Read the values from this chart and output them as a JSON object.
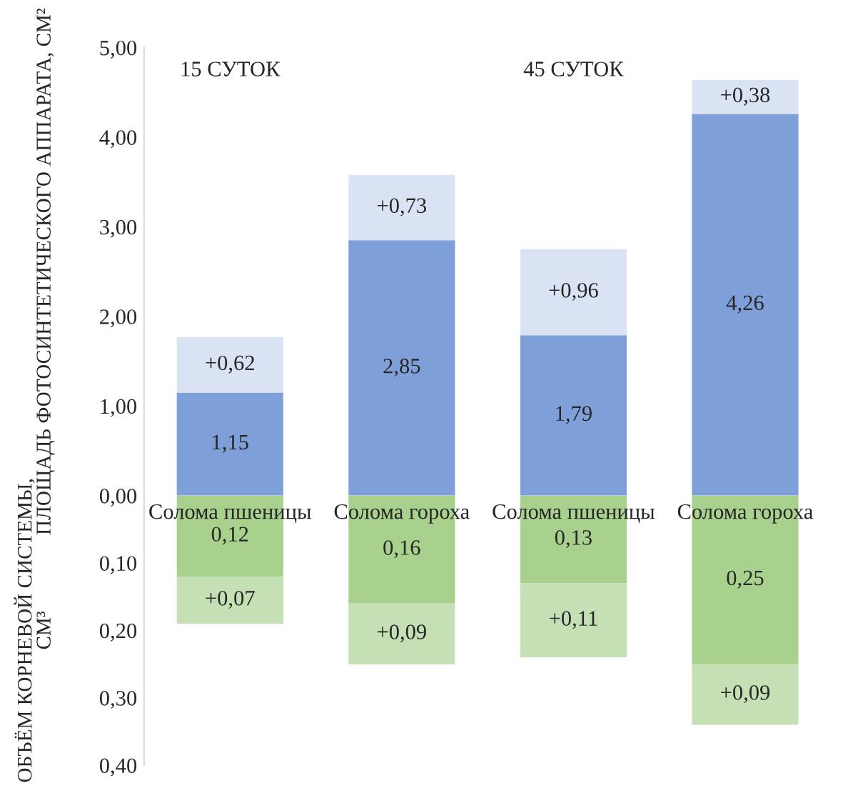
{
  "chart_data": [
    {
      "type": "bar",
      "stacked": true,
      "ylabel": "ПЛОЩАДЬ ФОТОСИНТЕТИЧЕСКОГО АППАРАТА, СМ²",
      "annotations": [
        "15 СУТОК",
        "45 СУТОК"
      ],
      "categories": [
        null,
        null,
        null,
        null
      ],
      "tick_labels": "y",
      "series": [
        {
          "color": "#7f9fd8",
          "values": [
            1.15,
            2.85,
            1.79,
            4.26
          ],
          "value_labels": [
            "1,15",
            "2,85",
            "1,79",
            "4,26"
          ]
        },
        {
          "color": "#dae3f3",
          "values": [
            0.62,
            0.73,
            0.96,
            0.38
          ],
          "value_labels": [
            "+0,62",
            "+0,73",
            "+0,96",
            "+0,38"
          ]
        }
      ],
      "ylim": [
        0,
        5
      ],
      "yticks": [
        {
          "value": 0,
          "label": "0,00"
        },
        {
          "value": 1,
          "label": "1,00"
        },
        {
          "value": 2,
          "label": "2,00"
        },
        {
          "value": 3,
          "label": "3,00"
        },
        {
          "value": 4,
          "label": "4,00"
        },
        {
          "value": 5,
          "label": "5,00"
        }
      ],
      "grid": false,
      "legend": false
    },
    {
      "type": "bar",
      "stacked": true,
      "ylabel": "ОБЪЁМ КОРНЕВОЙ СИСТЕМЫ, СМ³",
      "categories": [
        "Солома пшеницы",
        "Солома гороха",
        "Солома пшеницы",
        "Солома гороха"
      ],
      "series": [
        {
          "color": "#a9d18e",
          "values": [
            0.12,
            0.16,
            0.13,
            0.25
          ],
          "value_labels": [
            "0,12",
            "0,16",
            "0,13",
            "0,25"
          ]
        },
        {
          "color": "#c5e0b4",
          "values": [
            0.07,
            0.09,
            0.11,
            0.09
          ],
          "value_labels": [
            "+0,07",
            "+0,09",
            "+0,11",
            "+0,09"
          ]
        }
      ],
      "ylim": [
        0.4,
        0
      ],
      "yticks": [
        {
          "value": 0.1,
          "label": "0,10"
        },
        {
          "value": 0.2,
          "label": "0,20"
        },
        {
          "value": 0.3,
          "label": "0,30"
        },
        {
          "value": 0.4,
          "label": "0,40"
        }
      ],
      "grid": false,
      "legend": false
    }
  ]
}
